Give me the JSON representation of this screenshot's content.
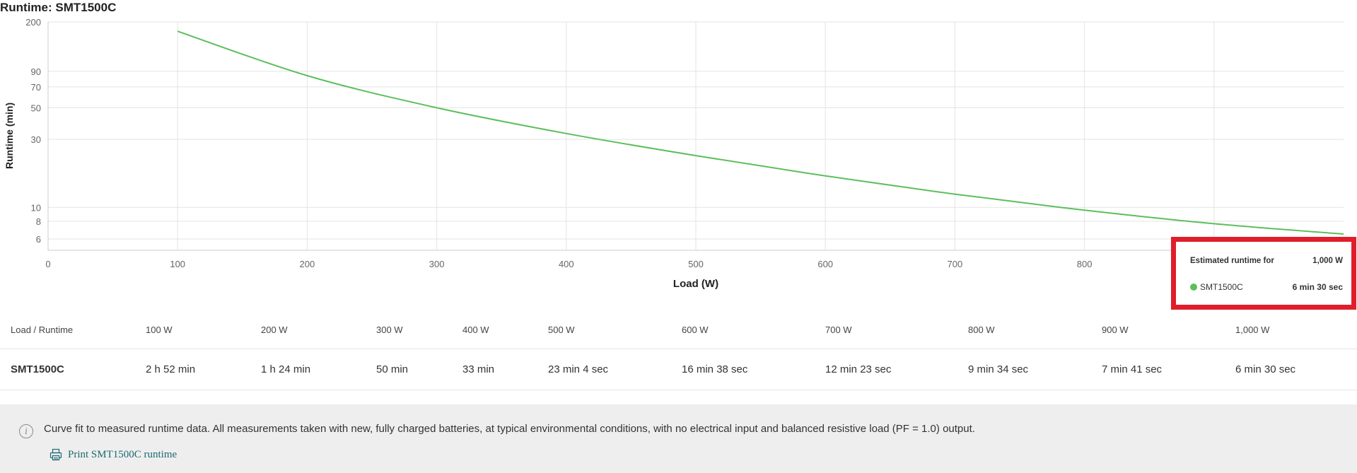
{
  "chart_title": "Runtime: SMT1500C",
  "colors": {
    "series": "#5cbf5c",
    "highlight_border": "#e01e2b",
    "footer_bg": "#efeeee",
    "link": "#1a6a72"
  },
  "chart_data": {
    "type": "line",
    "title": "Runtime: SMT1500C",
    "xlabel": "Load (W)",
    "ylabel": "Runtime (min)",
    "xlim": [
      0,
      1000
    ],
    "ylim": [
      5,
      200
    ],
    "yscale": "log",
    "grid": true,
    "x_ticks": [
      "0",
      "100",
      "200",
      "300",
      "400",
      "500",
      "600",
      "700",
      "800"
    ],
    "y_ticks": [
      "200",
      "90",
      "70",
      "50",
      "30",
      "10",
      "8",
      "6"
    ],
    "series": [
      {
        "name": "SMT1500C",
        "x": [
          100,
          200,
          300,
          400,
          500,
          600,
          700,
          800,
          900,
          1000
        ],
        "y": [
          172,
          84,
          50,
          33,
          23.07,
          16.63,
          12.38,
          9.57,
          7.68,
          6.5
        ]
      }
    ]
  },
  "tooltip": {
    "header_label": "Estimated runtime for",
    "header_value": "1,000 W",
    "series_label": "SMT1500C",
    "series_value": "6 min 30 sec"
  },
  "table": {
    "header": [
      "Load / Runtime",
      "100 W",
      "200 W",
      "300 W",
      "400 W",
      "500 W",
      "600 W",
      "700 W",
      "800 W",
      "900 W",
      "1,000 W"
    ],
    "rows": [
      [
        "SMT1500C",
        "2 h 52 min",
        "1 h 24 min",
        "50 min",
        "33 min",
        "23 min 4 sec",
        "16 min 38 sec",
        "12 min 23 sec",
        "9 min 34 sec",
        "7 min 41 sec",
        "6 min 30 sec"
      ]
    ]
  },
  "footer": {
    "note": "Curve fit to measured runtime data. All measurements taken with new, fully charged batteries, at typical environmental conditions, with no electrical input and balanced resistive load (PF = 1.0) output.",
    "print_link": "Print SMT1500C runtime"
  }
}
